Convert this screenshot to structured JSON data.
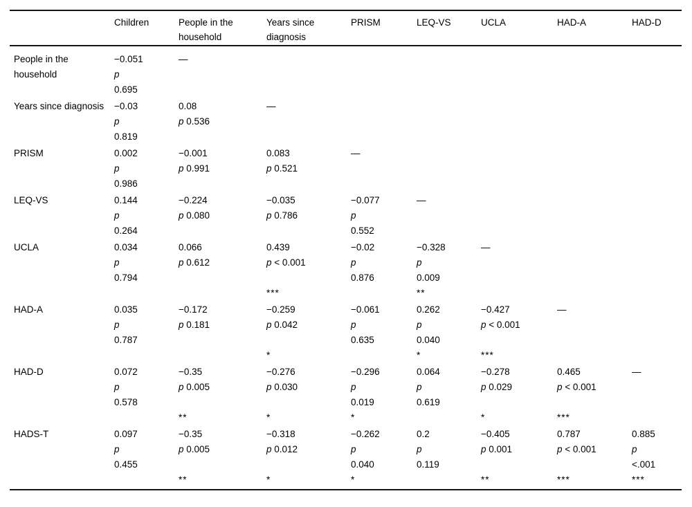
{
  "page": {
    "background": "#ffffff",
    "text_color": "#000000",
    "rule_color": "#141414"
  },
  "table": {
    "p_label": "p",
    "dash": "—",
    "columns": [
      "",
      "Children",
      "People in the household",
      "Years since diagnosis",
      "PRISM",
      "LEQ-VS",
      "UCLA",
      "HAD-A",
      "HAD-D"
    ],
    "rows": [
      {
        "label": "People in the household",
        "cells": [
          {
            "r": "−0.051",
            "p": "0.695",
            "wrap": true
          },
          {
            "dash": true
          },
          null,
          null,
          null,
          null,
          null,
          null
        ]
      },
      {
        "label": "Years since diagnosis",
        "cells": [
          {
            "r": "−0.03",
            "p": "0.819",
            "wrap": true
          },
          {
            "r": "0.08",
            "p": "0.536"
          },
          {
            "dash": true
          },
          null,
          null,
          null,
          null,
          null
        ]
      },
      {
        "label": "PRISM",
        "cells": [
          {
            "r": "0.002",
            "p": "0.986",
            "wrap": true
          },
          {
            "r": "−0.001",
            "p": "0.991"
          },
          {
            "r": "0.083",
            "p": "0.521"
          },
          {
            "dash": true
          },
          null,
          null,
          null,
          null
        ]
      },
      {
        "label": "LEQ-VS",
        "cells": [
          {
            "r": "0.144",
            "p": "0.264",
            "wrap": true
          },
          {
            "r": "−0.224",
            "p": "0.080"
          },
          {
            "r": "−0.035",
            "p": "0.786"
          },
          {
            "r": "−0.077",
            "p": "0.552",
            "wrap": true
          },
          {
            "dash": true
          },
          null,
          null,
          null
        ]
      },
      {
        "label": "UCLA",
        "cells": [
          {
            "r": "0.034",
            "p": "0.794",
            "wrap": true
          },
          {
            "r": "0.066",
            "p": "0.612"
          },
          {
            "r": "0.439",
            "p": "< 0.001",
            "stars": "***"
          },
          {
            "r": "−0.02",
            "p": "0.876",
            "wrap": true
          },
          {
            "r": "−0.328",
            "p": "0.009",
            "wrap": true,
            "stars": "**"
          },
          {
            "dash": true
          },
          null,
          null
        ]
      },
      {
        "label": "HAD-A",
        "cells": [
          {
            "r": "0.035",
            "p": "0.787",
            "wrap": true
          },
          {
            "r": "−0.172",
            "p": "0.181"
          },
          {
            "r": "−0.259",
            "p": "0.042",
            "stars": "*"
          },
          {
            "r": "−0.061",
            "p": "0.635",
            "wrap": true
          },
          {
            "r": "0.262",
            "p": "0.040",
            "wrap": true,
            "stars": "*"
          },
          {
            "r": "−0.427",
            "p": "< 0.001",
            "stars": "***"
          },
          {
            "dash": true
          },
          null
        ]
      },
      {
        "label": "HAD-D",
        "cells": [
          {
            "r": "0.072",
            "p": "0.578",
            "wrap": true
          },
          {
            "r": "−0.35",
            "p": "0.005",
            "stars": "**"
          },
          {
            "r": "−0.276",
            "p": "0.030",
            "stars": "*"
          },
          {
            "r": "−0.296",
            "p": "0.019",
            "wrap": true,
            "stars": "*"
          },
          {
            "r": "0.064",
            "p": "0.619",
            "wrap": true
          },
          {
            "r": "−0.278",
            "p": "0.029",
            "stars": "*"
          },
          {
            "r": "0.465",
            "p": "< 0.001",
            "stars": "***"
          },
          {
            "dash": true
          }
        ]
      },
      {
        "label": "HADS-T",
        "cells": [
          {
            "r": "0.097",
            "p": "0.455",
            "wrap": true
          },
          {
            "r": "−0.35",
            "p": "0.005",
            "stars": "**"
          },
          {
            "r": "−0.318",
            "p": "0.012",
            "stars": "*"
          },
          {
            "r": "−0.262",
            "p": "0.040",
            "wrap": true,
            "stars": "*"
          },
          {
            "r": "0.2",
            "p": "0.119",
            "wrap": true
          },
          {
            "r": "−0.405",
            "p": "0.001",
            "stars": "**"
          },
          {
            "r": "0.787",
            "p": "< 0.001",
            "stars": "***"
          },
          {
            "r": "0.885",
            "p": "<.001",
            "wrap": true,
            "stars": "***"
          }
        ]
      }
    ]
  }
}
